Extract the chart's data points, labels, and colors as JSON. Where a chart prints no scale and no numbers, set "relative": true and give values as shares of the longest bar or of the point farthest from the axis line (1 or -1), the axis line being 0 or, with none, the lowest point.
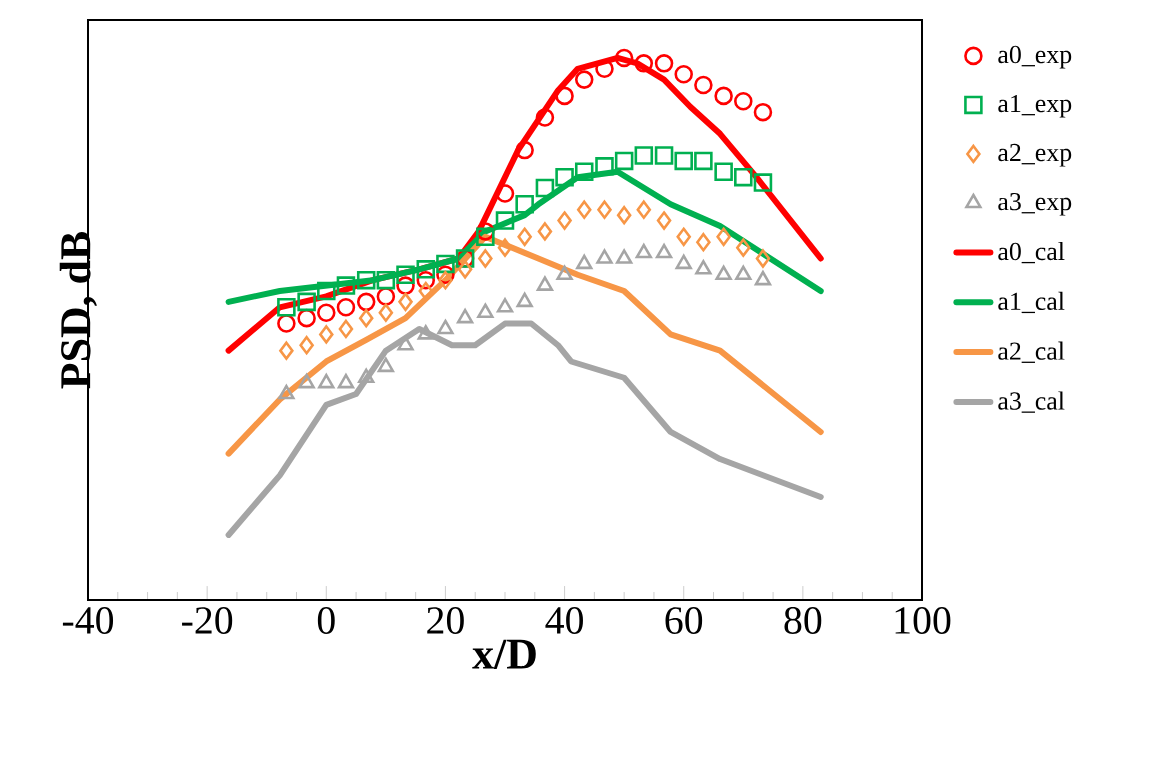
{
  "chart_data": {
    "type": "line",
    "relative": true,
    "xlabel": "x/D",
    "ylabel": "PSD, dB",
    "xlim": [
      -40,
      100
    ],
    "xticks": [
      -40,
      -20,
      0,
      20,
      40,
      60,
      80,
      100
    ],
    "legend": "right",
    "series": [
      {
        "name": "a0_exp",
        "type": "scatter",
        "marker": "circle",
        "color": "#ff0000",
        "x": [
          -6.7,
          -3.3,
          0,
          3.3,
          6.7,
          10,
          13.3,
          16.7,
          20,
          23.3,
          26.7,
          30,
          33.3,
          36.7,
          40,
          43.3,
          46.7,
          50,
          53.3,
          56.7,
          60,
          63.3,
          66.7,
          70,
          73.3
        ],
        "values": [
          0.51,
          0.52,
          0.53,
          0.54,
          0.55,
          0.56,
          0.58,
          0.59,
          0.6,
          0.63,
          0.68,
          0.75,
          0.83,
          0.89,
          0.93,
          0.96,
          0.98,
          1.0,
          0.99,
          0.99,
          0.97,
          0.95,
          0.93,
          0.92,
          0.9
        ]
      },
      {
        "name": "a1_exp",
        "type": "scatter",
        "marker": "square",
        "color": "#00b050",
        "x": [
          -6.7,
          -3.3,
          0,
          3.3,
          6.7,
          10,
          13.3,
          16.7,
          20,
          23.3,
          26.7,
          30,
          33.3,
          36.7,
          40,
          43.3,
          46.7,
          50,
          53.3,
          56.7,
          60,
          63.3,
          66.7,
          70,
          73.3
        ],
        "values": [
          0.54,
          0.55,
          0.57,
          0.58,
          0.59,
          0.59,
          0.6,
          0.61,
          0.62,
          0.63,
          0.67,
          0.7,
          0.73,
          0.76,
          0.78,
          0.79,
          0.8,
          0.81,
          0.82,
          0.82,
          0.81,
          0.81,
          0.79,
          0.78,
          0.77
        ]
      },
      {
        "name": "a2_exp",
        "type": "scatter",
        "marker": "diamond",
        "color": "#f79646",
        "x": [
          -6.7,
          -3.3,
          0,
          3.3,
          6.7,
          10,
          13.3,
          16.7,
          20,
          23.3,
          26.7,
          30,
          33.3,
          36.7,
          40,
          43.3,
          46.7,
          50,
          53.3,
          56.7,
          60,
          63.3,
          66.7,
          70,
          73.3
        ],
        "values": [
          0.46,
          0.47,
          0.49,
          0.5,
          0.52,
          0.53,
          0.55,
          0.57,
          0.59,
          0.61,
          0.63,
          0.65,
          0.67,
          0.68,
          0.7,
          0.72,
          0.72,
          0.71,
          0.72,
          0.7,
          0.67,
          0.66,
          0.67,
          0.65,
          0.63
        ]
      },
      {
        "name": "a3_exp",
        "type": "scatter",
        "marker": "triangle",
        "color": "#a5a5a5",
        "x": [
          -6.7,
          -3.3,
          0,
          3.3,
          6.7,
          10,
          13.3,
          16.7,
          20,
          23.3,
          26.7,
          30,
          33.3,
          36.7,
          40,
          43.3,
          46.7,
          50,
          53.3,
          56.7,
          60,
          63.3,
          66.7,
          70,
          73.3
        ],
        "values": [
          0.38,
          0.4,
          0.4,
          0.4,
          0.41,
          0.43,
          0.47,
          0.49,
          0.5,
          0.52,
          0.53,
          0.54,
          0.55,
          0.58,
          0.6,
          0.62,
          0.63,
          0.63,
          0.64,
          0.64,
          0.62,
          0.61,
          0.6,
          0.6,
          0.59
        ]
      },
      {
        "name": "a0_cal",
        "color": "#ff0000",
        "x": [
          -16.4,
          -7.8,
          0,
          7.8,
          15.6,
          22.2,
          25.6,
          32.2,
          38.9,
          42.2,
          48.9,
          52.2,
          56.7,
          61.1,
          66.1,
          72.2,
          83
        ],
        "values": [
          0.46,
          0.54,
          0.56,
          0.59,
          0.61,
          0.63,
          0.68,
          0.83,
          0.94,
          0.98,
          1.0,
          0.99,
          0.96,
          0.91,
          0.86,
          0.78,
          0.63
        ]
      },
      {
        "name": "a1_cal",
        "color": "#00b050",
        "x": [
          -16.4,
          -7.8,
          0,
          7.8,
          15.6,
          22.2,
          26.7,
          33.3,
          35.6,
          42.2,
          48.9,
          57.8,
          66.1,
          83
        ],
        "values": [
          0.55,
          0.57,
          0.58,
          0.59,
          0.61,
          0.63,
          0.68,
          0.71,
          0.73,
          0.78,
          0.79,
          0.73,
          0.69,
          0.57
        ]
      },
      {
        "name": "a2_cal",
        "color": "#f79646",
        "x": [
          -16.4,
          -7.8,
          0,
          6.7,
          13.3,
          20,
          26.7,
          35.6,
          42.2,
          50,
          57.8,
          66.1,
          83
        ],
        "values": [
          0.27,
          0.37,
          0.44,
          0.48,
          0.52,
          0.59,
          0.67,
          0.63,
          0.6,
          0.57,
          0.49,
          0.46,
          0.31
        ]
      },
      {
        "name": "a3_cal",
        "color": "#a5a5a5",
        "x": [
          -16.4,
          -7.8,
          0,
          5,
          10,
          15.6,
          21.1,
          25,
          30,
          34.4,
          38.9,
          41.1,
          50,
          57.8,
          66.1,
          83
        ],
        "values": [
          0.12,
          0.23,
          0.36,
          0.38,
          0.46,
          0.5,
          0.47,
          0.47,
          0.51,
          0.51,
          0.47,
          0.44,
          0.41,
          0.31,
          0.26,
          0.19
        ]
      }
    ]
  }
}
